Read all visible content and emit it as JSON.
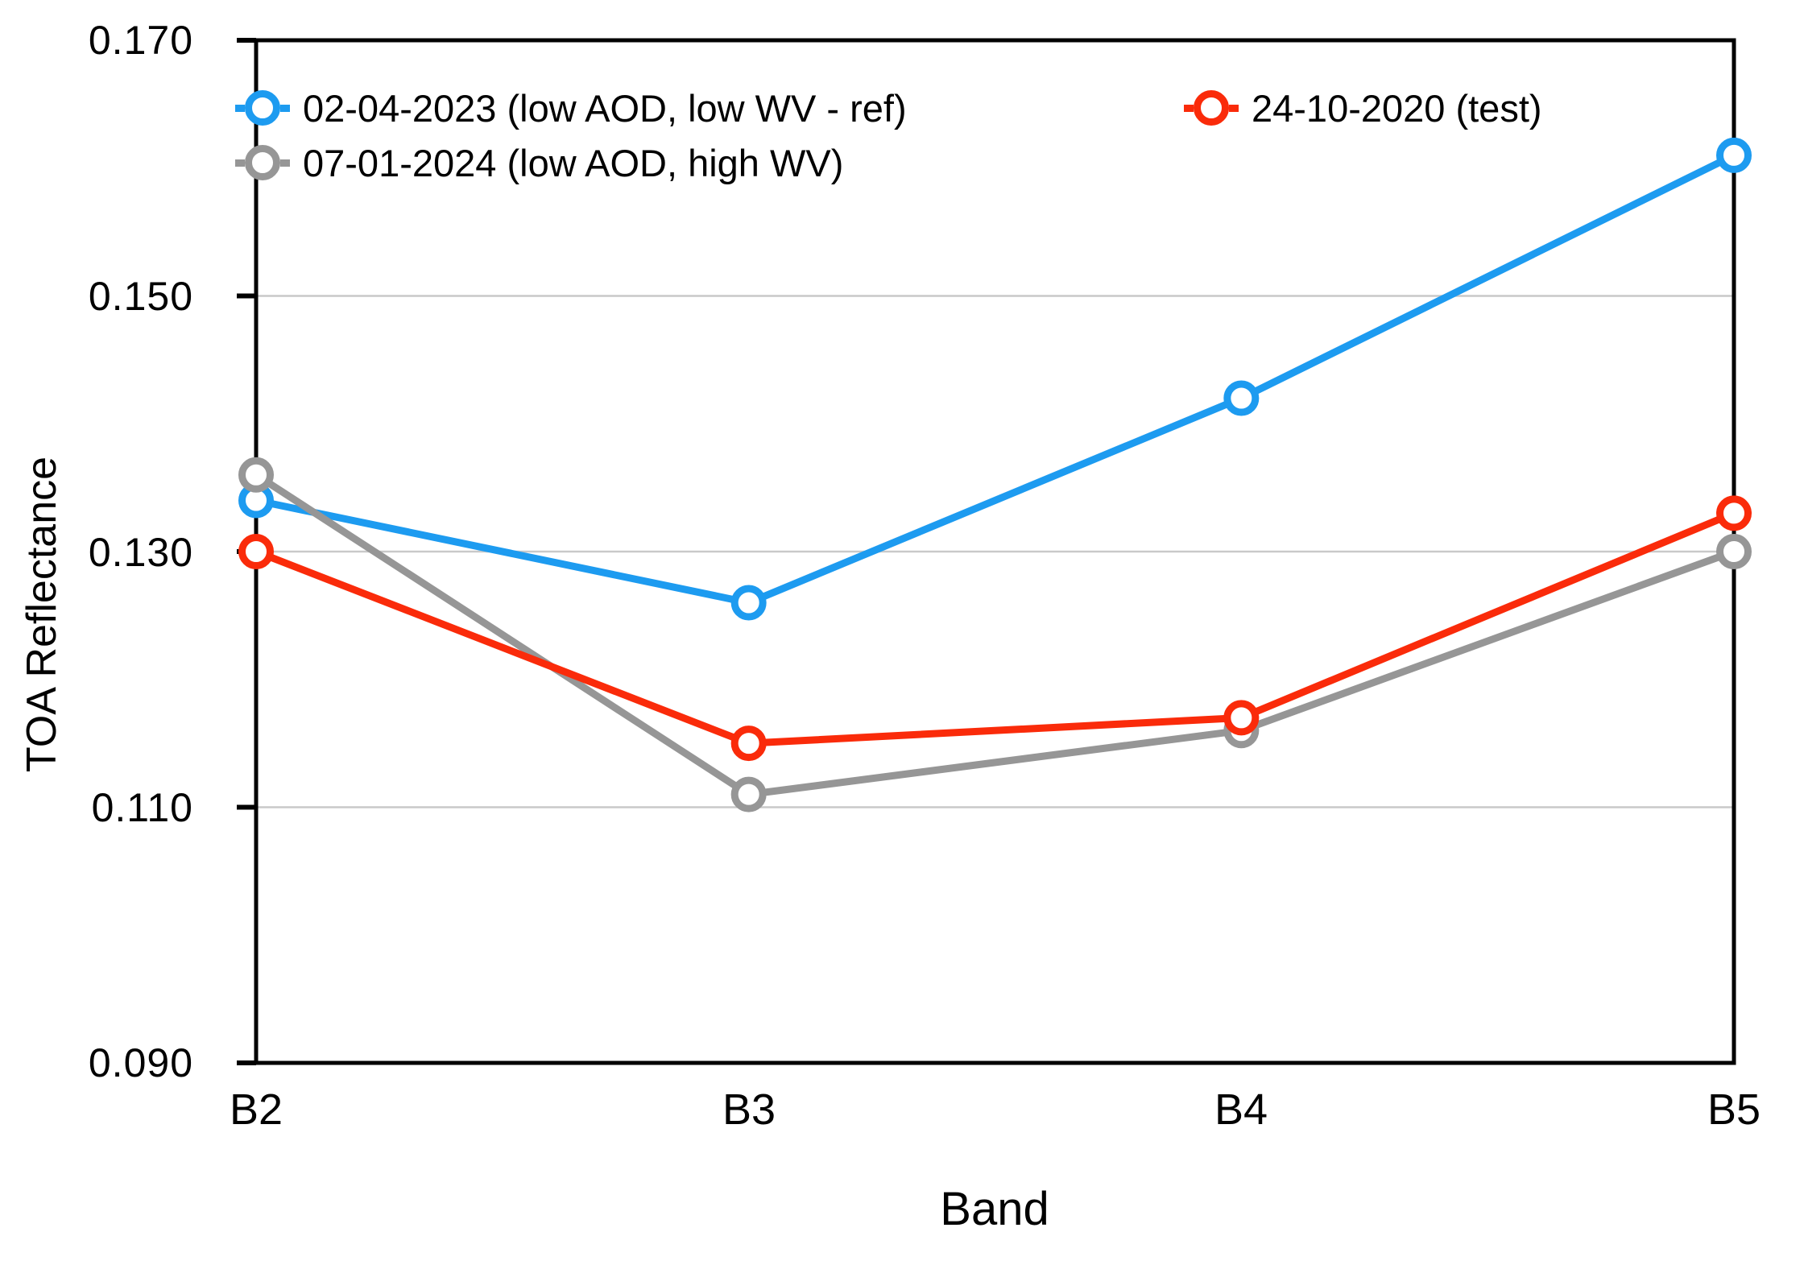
{
  "chart_data": {
    "type": "line",
    "title": "",
    "xlabel": "Band",
    "ylabel": "TOA Reflectance",
    "categories": [
      "B2",
      "B3",
      "B4",
      "B5"
    ],
    "series": [
      {
        "name": "02-04-2023 (low AOD, low WV - ref)",
        "color": "#1D9BF0",
        "values": [
          0.134,
          0.126,
          0.142,
          0.161
        ]
      },
      {
        "name": "07-01-2024 (low AOD, high WV)",
        "color": "#969696",
        "values": [
          0.136,
          0.111,
          0.116,
          0.13
        ]
      },
      {
        "name": "24-10-2020 (test)",
        "color": "#FA2B0A",
        "values": [
          0.13,
          0.115,
          0.117,
          0.133
        ]
      }
    ],
    "ylim": [
      0.09,
      0.17
    ],
    "yticks": [
      0.17,
      0.15,
      0.13,
      0.11,
      0.09
    ],
    "ytick_labels": [
      "0.170",
      "0.150",
      "0.130",
      "0.110",
      "0.090"
    ],
    "xtick_labels": [
      "B2",
      "B3",
      "B4",
      "B5"
    ],
    "gridline_values": [
      0.15,
      0.13,
      0.11
    ],
    "grid": "horizontal-only",
    "legend_position": "top-left-inside-two-columns",
    "marker_style": "open-circle",
    "frame_color": "#000000",
    "gridline_color": "#c9c9c9",
    "background_color": "#ffffff"
  }
}
